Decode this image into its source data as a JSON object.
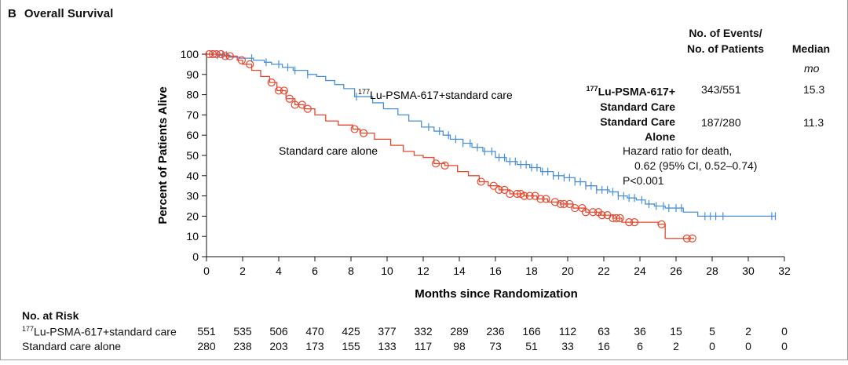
{
  "panel": {
    "letter": "B",
    "title": "Overall Survival"
  },
  "chart_data": {
    "type": "line",
    "title": "Overall Survival",
    "xlabel": "Months since Randomization",
    "ylabel": "Percent of Patients Alive",
    "xlim": [
      0,
      32
    ],
    "ylim": [
      0,
      100
    ],
    "x_ticks": [
      0,
      2,
      4,
      6,
      8,
      10,
      12,
      14,
      16,
      18,
      20,
      22,
      24,
      26,
      28,
      30,
      32
    ],
    "y_ticks": [
      0,
      10,
      20,
      30,
      40,
      50,
      60,
      70,
      80,
      90,
      100
    ],
    "series": [
      {
        "name": "177Lu-PSMA-617+standard care",
        "color": "#4a90d9",
        "marker": "tick",
        "points": [
          [
            0,
            100
          ],
          [
            0.6,
            99.5
          ],
          [
            1.3,
            98.5
          ],
          [
            1.8,
            98
          ],
          [
            2.6,
            97
          ],
          [
            3.2,
            96
          ],
          [
            3.6,
            95
          ],
          [
            4.2,
            93.5
          ],
          [
            4.8,
            92
          ],
          [
            5.6,
            90
          ],
          [
            6.1,
            89
          ],
          [
            6.6,
            87
          ],
          [
            7.1,
            85
          ],
          [
            7.6,
            83
          ],
          [
            8.2,
            79
          ],
          [
            9.2,
            76
          ],
          [
            9.8,
            73
          ],
          [
            10.6,
            70
          ],
          [
            11.2,
            67
          ],
          [
            11.9,
            64
          ],
          [
            12.6,
            62
          ],
          [
            13.1,
            60
          ],
          [
            13.5,
            58
          ],
          [
            14.2,
            56
          ],
          [
            14.7,
            54
          ],
          [
            15.3,
            52
          ],
          [
            16.0,
            49
          ],
          [
            16.6,
            47
          ],
          [
            17.2,
            45.5
          ],
          [
            17.9,
            44
          ],
          [
            18.5,
            42
          ],
          [
            19.2,
            40
          ],
          [
            19.8,
            39
          ],
          [
            20.4,
            37
          ],
          [
            21.0,
            35
          ],
          [
            21.6,
            33
          ],
          [
            22.3,
            32
          ],
          [
            22.8,
            30
          ],
          [
            23.3,
            29
          ],
          [
            23.8,
            28
          ],
          [
            24.3,
            26
          ],
          [
            24.8,
            25
          ],
          [
            25.4,
            24
          ],
          [
            26.4,
            22
          ],
          [
            27.2,
            20
          ],
          [
            31.5,
            20
          ]
        ],
        "censor_x": [
          0.3,
          0.6,
          0.9,
          1.1,
          2.5,
          3.3,
          4.0,
          4.5,
          4.9,
          5.6,
          8.3,
          12.3,
          12.9,
          13.4,
          13.8,
          14.2,
          14.6,
          15.0,
          15.4,
          15.8,
          16.2,
          16.5,
          16.8,
          17.1,
          17.4,
          17.7,
          18.0,
          18.3,
          18.6,
          18.9,
          19.2,
          19.5,
          19.8,
          20.1,
          20.4,
          20.7,
          21.0,
          21.3,
          21.6,
          21.9,
          22.2,
          22.5,
          22.8,
          23.1,
          23.4,
          23.7,
          24.1,
          24.5,
          24.9,
          25.3,
          25.6,
          26.0,
          26.3,
          27.6,
          27.9,
          28.2,
          28.6,
          31.3,
          31.5
        ]
      },
      {
        "name": "Standard care alone",
        "color": "#e8472e",
        "marker": "circle",
        "points": [
          [
            0,
            100
          ],
          [
            1.0,
            99
          ],
          [
            1.7,
            97
          ],
          [
            2.0,
            95
          ],
          [
            2.5,
            92
          ],
          [
            3.0,
            89
          ],
          [
            3.5,
            86
          ],
          [
            3.9,
            82
          ],
          [
            4.4,
            78
          ],
          [
            4.9,
            75
          ],
          [
            5.4,
            73
          ],
          [
            6.0,
            70
          ],
          [
            6.6,
            67
          ],
          [
            7.3,
            65
          ],
          [
            8.1,
            63
          ],
          [
            8.5,
            61
          ],
          [
            9.3,
            58
          ],
          [
            10.2,
            55
          ],
          [
            10.9,
            52
          ],
          [
            11.5,
            50
          ],
          [
            12.0,
            49
          ],
          [
            12.6,
            46
          ],
          [
            13.2,
            45
          ],
          [
            13.9,
            42
          ],
          [
            14.5,
            40
          ],
          [
            15.1,
            37
          ],
          [
            15.6,
            35
          ],
          [
            16.2,
            33
          ],
          [
            16.8,
            31
          ],
          [
            17.6,
            30
          ],
          [
            18.3,
            28.5
          ],
          [
            18.9,
            27
          ],
          [
            19.6,
            26
          ],
          [
            20.3,
            24
          ],
          [
            21.0,
            22
          ],
          [
            21.8,
            20.5
          ],
          [
            22.5,
            19
          ],
          [
            23.0,
            17
          ],
          [
            24.6,
            17
          ],
          [
            25.0,
            16
          ],
          [
            25.3,
            16
          ],
          [
            25.4,
            9
          ],
          [
            27.0,
            9
          ]
        ],
        "censor_x": [
          0.15,
          0.35,
          0.55,
          0.8,
          1.05,
          1.3,
          1.95,
          2.4,
          3.6,
          4.0,
          4.3,
          4.6,
          4.9,
          5.3,
          5.6,
          8.2,
          8.7,
          12.7,
          13.2,
          15.2,
          15.9,
          16.2,
          16.5,
          16.8,
          17.2,
          17.4,
          17.6,
          17.9,
          18.2,
          18.5,
          18.8,
          19.3,
          19.6,
          19.8,
          20.1,
          20.4,
          20.8,
          21.0,
          21.4,
          21.7,
          21.9,
          22.2,
          22.5,
          22.7,
          22.9,
          23.4,
          23.7,
          25.2,
          26.6,
          26.9
        ]
      }
    ],
    "annotations": {
      "lu_label": "177Lu-PSMA-617+standard care",
      "std_label": "Standard care alone"
    }
  },
  "summary_table": {
    "events_header_line1": "No. of Events/",
    "events_header_line2": "No. of Patients",
    "median_header": "Median",
    "median_unit": "mo",
    "rows": [
      {
        "label_line1": "177Lu-PSMA-617+",
        "label_line2": "Standard Care",
        "events": "343/551",
        "median": "15.3"
      },
      {
        "label_line1": "Standard Care",
        "label_line2": "Alone",
        "events": "187/280",
        "median": "11.3"
      }
    ],
    "hazard_line1": "Hazard ratio for death,",
    "hazard_line2": "0.62 (95% CI, 0.52–0.74)",
    "hazard_line3": "P<0.001"
  },
  "at_risk": {
    "title": "No. at Risk",
    "rows": [
      {
        "label": "177Lu-PSMA-617+standard care",
        "values": [
          "551",
          "535",
          "506",
          "470",
          "425",
          "377",
          "332",
          "289",
          "236",
          "166",
          "112",
          "63",
          "36",
          "15",
          "5",
          "2",
          "0"
        ]
      },
      {
        "label": "Standard care alone",
        "values": [
          "280",
          "238",
          "203",
          "173",
          "155",
          "133",
          "117",
          "98",
          "73",
          "51",
          "33",
          "16",
          "6",
          "2",
          "0",
          "0",
          "0"
        ]
      }
    ]
  }
}
